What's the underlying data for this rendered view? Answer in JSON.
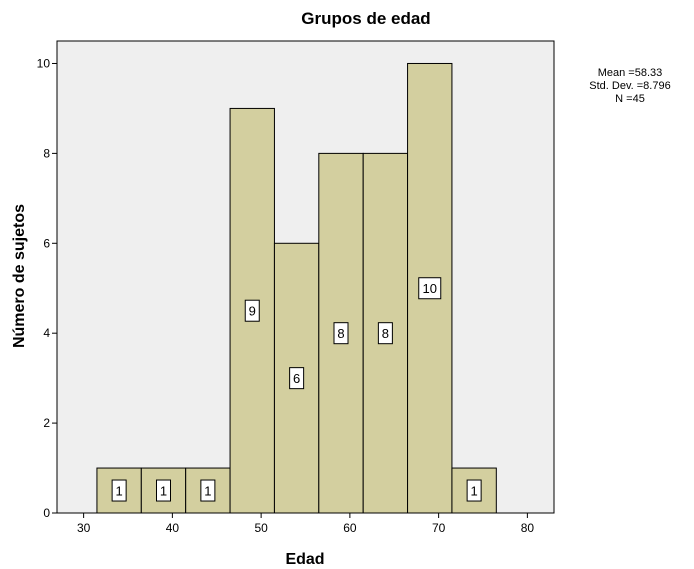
{
  "chart_data": {
    "type": "bar",
    "title": "Grupos de edad",
    "xlabel": "Edad",
    "ylabel": "Número de sujetos",
    "xlim": [
      27,
      83
    ],
    "ylim": [
      0,
      10.5
    ],
    "x_ticks": [
      30,
      40,
      50,
      60,
      70,
      80
    ],
    "y_ticks": [
      0,
      2,
      4,
      6,
      8,
      10
    ],
    "bins": [
      {
        "start": 31.5,
        "end": 36.5,
        "value": 1
      },
      {
        "start": 36.5,
        "end": 41.5,
        "value": 1
      },
      {
        "start": 41.5,
        "end": 46.5,
        "value": 1
      },
      {
        "start": 46.5,
        "end": 51.5,
        "value": 9
      },
      {
        "start": 51.5,
        "end": 56.5,
        "value": 6
      },
      {
        "start": 56.5,
        "end": 61.5,
        "value": 8
      },
      {
        "start": 61.5,
        "end": 66.5,
        "value": 8
      },
      {
        "start": 66.5,
        "end": 71.5,
        "value": 10
      },
      {
        "start": 71.5,
        "end": 76.5,
        "value": 1
      }
    ],
    "stats": {
      "mean": "Mean =58.33",
      "std": "Std. Dev. =8.796",
      "n": "N =45"
    },
    "colors": {
      "bar_fill": "#d3cf9f",
      "plot_background": "#efefef",
      "label_box": "#ffffff"
    },
    "grid": false
  }
}
